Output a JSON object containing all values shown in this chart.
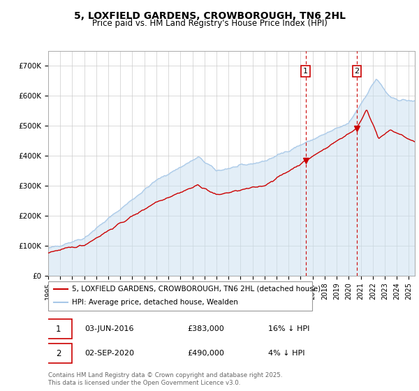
{
  "title": "5, LOXFIELD GARDENS, CROWBOROUGH, TN6 2HL",
  "subtitle": "Price paid vs. HM Land Registry's House Price Index (HPI)",
  "ylabel_ticks": [
    "£0",
    "£100K",
    "£200K",
    "£300K",
    "£400K",
    "£500K",
    "£600K",
    "£700K"
  ],
  "ytick_values": [
    0,
    100000,
    200000,
    300000,
    400000,
    500000,
    600000,
    700000
  ],
  "ylim": [
    0,
    750000
  ],
  "xlim_start": 1995.0,
  "xlim_end": 2025.5,
  "background_color": "#ffffff",
  "plot_bg_color": "#ffffff",
  "grid_color": "#cccccc",
  "hpi_color": "#a8c8e8",
  "hpi_fill_color": "#c8dff0",
  "price_color": "#cc0000",
  "purchase1_date": 2016.42,
  "purchase1_price": 383000,
  "purchase2_date": 2020.67,
  "purchase2_price": 490000,
  "legend_line1": "5, LOXFIELD GARDENS, CROWBOROUGH, TN6 2HL (detached house)",
  "legend_line2": "HPI: Average price, detached house, Wealden",
  "annotation1_date": "03-JUN-2016",
  "annotation1_price": "£383,000",
  "annotation1_hpi": "16% ↓ HPI",
  "annotation2_date": "02-SEP-2020",
  "annotation2_price": "£490,000",
  "annotation2_hpi": "4% ↓ HPI",
  "footer": "Contains HM Land Registry data © Crown copyright and database right 2025.\nThis data is licensed under the Open Government Licence v3.0.",
  "xticks": [
    1995,
    1996,
    1997,
    1998,
    1999,
    2000,
    2001,
    2002,
    2003,
    2004,
    2005,
    2006,
    2007,
    2008,
    2009,
    2010,
    2011,
    2012,
    2013,
    2014,
    2015,
    2016,
    2017,
    2018,
    2019,
    2020,
    2021,
    2022,
    2023,
    2024,
    2025
  ]
}
